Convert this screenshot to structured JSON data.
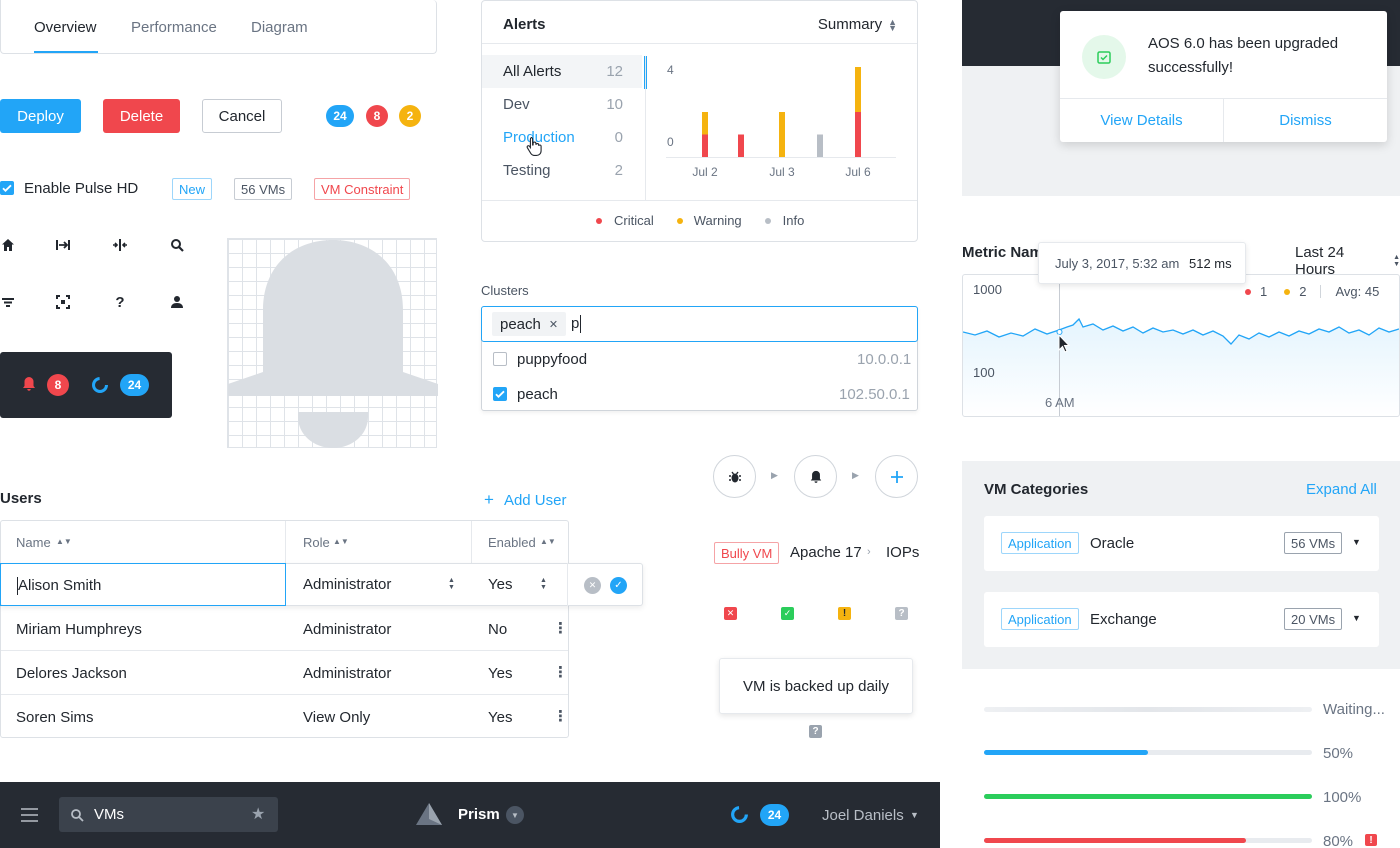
{
  "tabs": [
    {
      "label": "Overview",
      "active": true
    },
    {
      "label": "Performance",
      "active": false
    },
    {
      "label": "Diagram",
      "active": false
    }
  ],
  "buttons": {
    "deploy": "Deploy",
    "delete": "Delete",
    "cancel": "Cancel"
  },
  "count_badges": [
    {
      "value": "24",
      "color": "#22a5f7"
    },
    {
      "value": "8",
      "color": "#f0474d"
    },
    {
      "value": "2",
      "color": "#f5b30f"
    }
  ],
  "pulse": {
    "label": "Enable Pulse HD",
    "checked": true
  },
  "tags": {
    "new": "New",
    "vms": "56 VMs",
    "constraint": "VM Constraint"
  },
  "icons": [
    "home-icon",
    "expand-horizontal-icon",
    "collapse-horizontal-icon",
    "search-icon",
    "filter-icon",
    "focus-icon",
    "help-icon",
    "user-icon"
  ],
  "dark_box": {
    "alerts_count": "8",
    "tasks_count": "24"
  },
  "alerts": {
    "title": "Alerts",
    "summary_label": "Summary",
    "items": [
      {
        "label": "All Alerts",
        "count": "12"
      },
      {
        "label": "Dev",
        "count": "10"
      },
      {
        "label": "Production",
        "count": "0"
      },
      {
        "label": "Testing",
        "count": "2"
      }
    ],
    "legend": [
      "Critical",
      "Warning",
      "Info"
    ],
    "colors": {
      "critical": "#f0474d",
      "warning": "#f5b30f",
      "info": "#b8bec6"
    }
  },
  "chart_data": {
    "type": "bar",
    "y_ticks": [
      "4",
      "0"
    ],
    "x_ticks": [
      "Jul 2",
      "Jul 3",
      "Jul 6"
    ],
    "series": [
      {
        "name": "Critical",
        "values": [
          1,
          1,
          0,
          0,
          2
        ]
      },
      {
        "name": "Warning",
        "values": [
          1,
          0,
          2,
          0,
          2
        ]
      },
      {
        "name": "Info",
        "values": [
          0,
          0,
          0,
          1,
          0
        ]
      }
    ],
    "legend": [
      "Critical",
      "Warning",
      "Info"
    ]
  },
  "clusters": {
    "label": "Clusters",
    "chip": "peach",
    "query": "p",
    "options": [
      {
        "name": "puppyfood",
        "ip": "10.0.0.1",
        "checked": false
      },
      {
        "name": "peach",
        "ip": "102.50.0.1",
        "checked": true
      }
    ]
  },
  "users": {
    "title": "Users",
    "add_label": "Add User",
    "columns": [
      "Name",
      "Role",
      "Enabled"
    ],
    "edit_row": {
      "name": "Alison Smith",
      "role": "Administrator",
      "enabled": "Yes"
    },
    "rows": [
      {
        "name": "Miriam Humphreys",
        "role": "Administrator",
        "enabled": "No"
      },
      {
        "name": "Delores Jackson",
        "role": "Administrator",
        "enabled": "Yes"
      },
      {
        "name": "Soren Sims",
        "role": "View Only",
        "enabled": "Yes"
      }
    ]
  },
  "breadcrumb": {
    "badge": "Bully VM",
    "parent": "Apache 17",
    "current": "IOPs"
  },
  "tooltip_text": "VM is backed up daily",
  "notification": {
    "message": "AOS 6.0 has been upgraded successfully!",
    "view": "View Details",
    "dismiss": "Dismiss"
  },
  "metric": {
    "title": "Metric Nam",
    "range": "Last 24 Hours",
    "tooltip_date": "July 3, 2017, 5:32 am",
    "tooltip_value": "512 ms",
    "y_top": "1000",
    "y_bottom": "100",
    "x_label": "6 AM",
    "legend_red": "1",
    "legend_yellow": "2",
    "avg": "Avg: 45"
  },
  "vm_categories": {
    "title": "VM Categories",
    "expand": "Expand All",
    "items": [
      {
        "tag": "Application",
        "name": "Oracle",
        "count": "56 VMs"
      },
      {
        "tag": "Application",
        "name": "Exchange",
        "count": "20 VMs"
      }
    ]
  },
  "progress": [
    {
      "label": "Waiting...",
      "value": 0,
      "color": "#e8ebef"
    },
    {
      "label": "50%",
      "value": 0.5,
      "color": "#22a5f7"
    },
    {
      "label": "100%",
      "value": 1.0,
      "color": "#2bcd5b"
    },
    {
      "label": "80%",
      "value": 0.8,
      "color": "#f0474d"
    }
  ],
  "bottom_bar": {
    "search": "VMs",
    "product": "Prism",
    "tasks": "24",
    "user": "Joel Daniels"
  }
}
